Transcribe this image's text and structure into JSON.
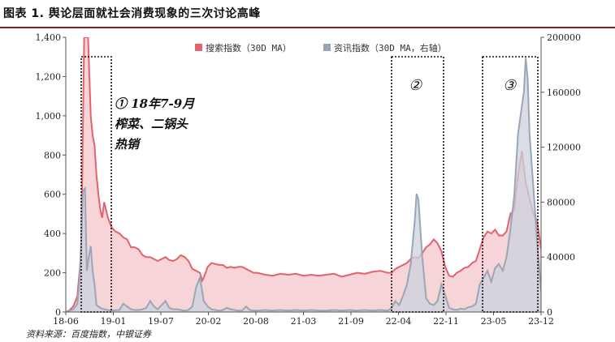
{
  "header": {
    "title": "图表 1. 舆论层面就社会消费现象的三次讨论高峰"
  },
  "footer": {
    "source": "资料来源：百度指数，中银证券"
  },
  "colors": {
    "search_line": "#e0646c",
    "search_fill": "#f6cdd0",
    "news_line": "#9aa6b8",
    "news_fill": "#ccd3de",
    "title_rule": "#8a1c24"
  },
  "chart_data": {
    "type": "area",
    "x_ticks": [
      "18-06",
      "19-01",
      "19-07",
      "20-02",
      "20-08",
      "21-03",
      "21-09",
      "22-04",
      "22-11",
      "23-05",
      "23-12"
    ],
    "y_left": {
      "ticks": [
        "0",
        "200",
        "400",
        "600",
        "800",
        "1,000",
        "1,200",
        "1,400"
      ],
      "range": [
        0,
        1400
      ]
    },
    "y_right": {
      "ticks": [
        "0",
        "40000",
        "80000",
        "120000",
        "160000",
        "200000"
      ],
      "range": [
        0,
        200000
      ]
    },
    "legend": {
      "position": "top-center"
    },
    "series": [
      {
        "name": "搜索指数（30D MA）",
        "axis": "left",
        "points": [
          [
            0,
            0
          ],
          [
            1,
            10
          ],
          [
            2,
            30
          ],
          [
            3,
            80
          ],
          [
            4,
            300
          ],
          [
            4.8,
            1400
          ],
          [
            5.3,
            1400
          ],
          [
            5.8,
            1400
          ],
          [
            6.5,
            1000
          ],
          [
            7,
            900
          ],
          [
            7.5,
            850
          ],
          [
            8,
            700
          ],
          [
            8.5,
            600
          ],
          [
            9,
            520
          ],
          [
            9.5,
            480
          ],
          [
            10,
            560
          ],
          [
            10.5,
            520
          ],
          [
            11,
            480
          ],
          [
            12,
            430
          ],
          [
            13,
            410
          ],
          [
            14,
            400
          ],
          [
            15,
            380
          ],
          [
            16,
            370
          ],
          [
            17,
            330
          ],
          [
            18,
            330
          ],
          [
            19,
            320
          ],
          [
            20,
            290
          ],
          [
            21,
            280
          ],
          [
            22,
            280
          ],
          [
            23,
            270
          ],
          [
            24,
            260
          ],
          [
            25,
            270
          ],
          [
            26,
            280
          ],
          [
            27,
            265
          ],
          [
            28,
            260
          ],
          [
            29,
            270
          ],
          [
            30,
            290
          ],
          [
            31,
            280
          ],
          [
            32,
            260
          ],
          [
            33,
            220
          ],
          [
            34,
            210
          ],
          [
            35,
            200
          ],
          [
            35.6,
            160
          ],
          [
            36,
            175
          ],
          [
            37,
            230
          ],
          [
            38,
            250
          ],
          [
            39,
            245
          ],
          [
            40,
            240
          ],
          [
            41,
            240
          ],
          [
            42,
            225
          ],
          [
            43,
            230
          ],
          [
            44,
            225
          ],
          [
            45,
            230
          ],
          [
            46,
            230
          ],
          [
            47,
            220
          ],
          [
            48,
            210
          ],
          [
            49,
            200
          ],
          [
            50,
            200
          ],
          [
            52,
            190
          ],
          [
            54,
            185
          ],
          [
            56,
            195
          ],
          [
            58,
            190
          ],
          [
            60,
            195
          ],
          [
            62,
            185
          ],
          [
            64,
            190
          ],
          [
            66,
            185
          ],
          [
            68,
            190
          ],
          [
            70,
            195
          ],
          [
            72,
            180
          ],
          [
            74,
            190
          ],
          [
            76,
            200
          ],
          [
            78,
            195
          ],
          [
            80,
            205
          ],
          [
            82,
            210
          ],
          [
            84,
            200
          ],
          [
            85,
            200
          ],
          [
            86,
            220
          ],
          [
            87,
            230
          ],
          [
            88,
            240
          ],
          [
            89,
            250
          ],
          [
            90,
            270
          ],
          [
            91,
            280
          ],
          [
            92,
            275
          ],
          [
            93,
            300
          ],
          [
            94,
            330
          ],
          [
            95,
            345
          ],
          [
            96,
            370
          ],
          [
            97,
            350
          ],
          [
            98,
            310
          ],
          [
            99,
            230
          ],
          [
            100,
            185
          ],
          [
            101,
            180
          ],
          [
            102,
            200
          ],
          [
            103,
            210
          ],
          [
            104,
            225
          ],
          [
            105,
            230
          ],
          [
            106,
            250
          ],
          [
            107,
            260
          ],
          [
            108,
            320
          ],
          [
            109,
            380
          ],
          [
            110,
            410
          ],
          [
            111,
            400
          ],
          [
            112,
            420
          ],
          [
            113,
            390
          ],
          [
            114,
            390
          ],
          [
            115,
            410
          ],
          [
            116,
            500
          ],
          [
            117,
            520
          ],
          [
            118,
            700
          ],
          [
            119,
            820
          ],
          [
            120,
            660
          ],
          [
            121,
            580
          ],
          [
            122,
            500
          ],
          [
            123,
            460
          ],
          [
            124,
            320
          ]
        ]
      },
      {
        "name": "资讯指数（30D MA，右轴）",
        "axis": "right",
        "points": [
          [
            0,
            0
          ],
          [
            2,
            2000
          ],
          [
            3,
            6000
          ],
          [
            3.5,
            20000
          ],
          [
            4,
            50000
          ],
          [
            4.5,
            88000
          ],
          [
            5,
            90000
          ],
          [
            5.5,
            30000
          ],
          [
            6,
            40000
          ],
          [
            6.5,
            48000
          ],
          [
            7,
            30000
          ],
          [
            7.5,
            20000
          ],
          [
            8,
            5000
          ],
          [
            9,
            3000
          ],
          [
            10,
            2000
          ],
          [
            11,
            1500
          ],
          [
            12,
            1000
          ],
          [
            14,
            1500
          ],
          [
            15,
            6000
          ],
          [
            16,
            4000
          ],
          [
            17,
            2000
          ],
          [
            18,
            1500
          ],
          [
            19,
            1500
          ],
          [
            20,
            2000
          ],
          [
            21,
            3000
          ],
          [
            22,
            8000
          ],
          [
            23,
            4000
          ],
          [
            24,
            2000
          ],
          [
            25,
            5000
          ],
          [
            26,
            8000
          ],
          [
            27,
            3000
          ],
          [
            28,
            2000
          ],
          [
            29,
            2000
          ],
          [
            30,
            1500
          ],
          [
            31,
            1000
          ],
          [
            32,
            1500
          ],
          [
            33,
            4000
          ],
          [
            34,
            18000
          ],
          [
            35,
            25000
          ],
          [
            36,
            8000
          ],
          [
            37,
            4000
          ],
          [
            38,
            2000
          ],
          [
            39,
            1500
          ],
          [
            40,
            1000
          ],
          [
            41,
            1500
          ],
          [
            42,
            3000
          ],
          [
            43,
            2000
          ],
          [
            44,
            1500
          ],
          [
            45,
            1000
          ],
          [
            46,
            1000
          ],
          [
            47,
            4000
          ],
          [
            48,
            1500
          ],
          [
            49,
            1000
          ],
          [
            50,
            1000
          ],
          [
            52,
            1500
          ],
          [
            54,
            1000
          ],
          [
            56,
            1500
          ],
          [
            58,
            1000
          ],
          [
            60,
            1500
          ],
          [
            62,
            1000
          ],
          [
            64,
            1500
          ],
          [
            66,
            1000
          ],
          [
            68,
            1000
          ],
          [
            70,
            1500
          ],
          [
            72,
            1000
          ],
          [
            74,
            1500
          ],
          [
            76,
            1000
          ],
          [
            78,
            1500
          ],
          [
            80,
            1000
          ],
          [
            82,
            1500
          ],
          [
            84,
            1000
          ],
          [
            85,
            3000
          ],
          [
            86,
            8000
          ],
          [
            87,
            5000
          ],
          [
            88,
            12000
          ],
          [
            89,
            20000
          ],
          [
            90,
            35000
          ],
          [
            91,
            65000
          ],
          [
            91.5,
            86000
          ],
          [
            92,
            82000
          ],
          [
            93,
            40000
          ],
          [
            94,
            10000
          ],
          [
            95,
            6000
          ],
          [
            96,
            5000
          ],
          [
            97,
            8000
          ],
          [
            98,
            20000
          ],
          [
            99,
            12000
          ],
          [
            100,
            3000
          ],
          [
            101,
            2000
          ],
          [
            102,
            1500
          ],
          [
            103,
            2500
          ],
          [
            104,
            2000
          ],
          [
            105,
            3500
          ],
          [
            106,
            4000
          ],
          [
            107,
            6000
          ],
          [
            108,
            20000
          ],
          [
            109,
            25000
          ],
          [
            110,
            30000
          ],
          [
            111,
            22000
          ],
          [
            112,
            32000
          ],
          [
            113,
            35000
          ],
          [
            114,
            30000
          ],
          [
            115,
            40000
          ],
          [
            116,
            60000
          ],
          [
            117,
            85000
          ],
          [
            118,
            130000
          ],
          [
            119,
            150000
          ],
          [
            119.5,
            160000
          ],
          [
            120,
            185000
          ],
          [
            120.5,
            170000
          ],
          [
            121,
            130000
          ],
          [
            122,
            90000
          ],
          [
            123,
            50000
          ],
          [
            124,
            15000
          ]
        ]
      }
    ],
    "annotations": [
      {
        "label": "①",
        "text": [
          "① 18年7-9月",
          "榨菜、二锅头",
          "热销"
        ]
      },
      {
        "label": "②",
        "text": [
          "②"
        ]
      },
      {
        "label": "③",
        "text": [
          "③"
        ]
      }
    ]
  }
}
